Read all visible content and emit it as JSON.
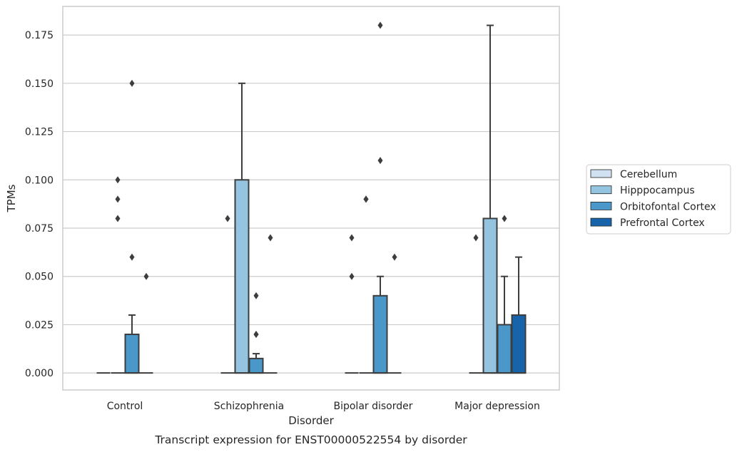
{
  "chart_data": {
    "type": "box",
    "title": "",
    "caption": "Transcript expression for ENST00000522554 by disorder",
    "xlabel": "Disorder",
    "ylabel": "TPMs",
    "ylim": [
      -0.0088,
      0.1898
    ],
    "yticks": [
      "0.000",
      "0.025",
      "0.050",
      "0.075",
      "0.100",
      "0.125",
      "0.150",
      "0.175"
    ],
    "grid": "horizontal",
    "legend_position": "right",
    "categories": [
      "Control",
      "Schizophrenia",
      "Bipolar disorder",
      "Major depression"
    ],
    "series": [
      {
        "name": "Cerebellum",
        "color": "#d0e1f2",
        "boxes": [
          {
            "q1": 0,
            "median": 0,
            "q3": 0,
            "whisker_low": 0,
            "whisker_high": 0,
            "outliers": []
          },
          {
            "q1": 0,
            "median": 0,
            "q3": 0,
            "whisker_low": 0,
            "whisker_high": 0,
            "outliers": [
              0.08
            ]
          },
          {
            "q1": 0,
            "median": 0,
            "q3": 0,
            "whisker_low": 0,
            "whisker_high": 0,
            "outliers": [
              0.05,
              0.07
            ]
          },
          {
            "q1": 0,
            "median": 0,
            "q3": 0,
            "whisker_low": 0,
            "whisker_high": 0,
            "outliers": [
              0.07
            ]
          }
        ]
      },
      {
        "name": "Hipppocampus",
        "color": "#94c4df",
        "boxes": [
          {
            "q1": 0,
            "median": 0,
            "q3": 0,
            "whisker_low": 0,
            "whisker_high": 0,
            "outliers": [
              0.08,
              0.09,
              0.1
            ]
          },
          {
            "q1": 0,
            "median": 0,
            "q3": 0.1,
            "whisker_low": 0,
            "whisker_high": 0.15,
            "outliers": []
          },
          {
            "q1": 0,
            "median": 0,
            "q3": 0,
            "whisker_low": 0,
            "whisker_high": 0,
            "outliers": [
              0.09,
              0.09
            ]
          },
          {
            "q1": 0,
            "median": 0,
            "q3": 0.08,
            "whisker_low": 0,
            "whisker_high": 0.18,
            "outliers": []
          }
        ]
      },
      {
        "name": "Orbitofontal Cortex",
        "color": "#4a98c9",
        "boxes": [
          {
            "q1": 0,
            "median": 0,
            "q3": 0.02,
            "whisker_low": 0,
            "whisker_high": 0.03,
            "outliers": [
              0.06,
              0.15
            ]
          },
          {
            "q1": 0,
            "median": 0,
            "q3": 0.0075,
            "whisker_low": 0,
            "whisker_high": 0.01,
            "outliers": [
              0.02,
              0.02,
              0.04
            ]
          },
          {
            "q1": 0,
            "median": 0,
            "q3": 0.04,
            "whisker_low": 0,
            "whisker_high": 0.05,
            "outliers": [
              0.11,
              0.18
            ]
          },
          {
            "q1": 0,
            "median": 0,
            "q3": 0.025,
            "whisker_low": 0,
            "whisker_high": 0.05,
            "outliers": [
              0.08
            ]
          }
        ]
      },
      {
        "name": "Prefrontal Cortex",
        "color": "#1764ab",
        "boxes": [
          {
            "q1": 0,
            "median": 0,
            "q3": 0,
            "whisker_low": 0,
            "whisker_high": 0,
            "outliers": [
              0.05
            ]
          },
          {
            "q1": 0,
            "median": 0,
            "q3": 0,
            "whisker_low": 0,
            "whisker_high": 0,
            "outliers": [
              0.07
            ]
          },
          {
            "q1": 0,
            "median": 0,
            "q3": 0,
            "whisker_low": 0,
            "whisker_high": 0,
            "outliers": [
              0.06
            ]
          },
          {
            "q1": 0,
            "median": 0,
            "q3": 0.03,
            "whisker_low": 0,
            "whisker_high": 0.06,
            "outliers": []
          }
        ]
      }
    ]
  }
}
